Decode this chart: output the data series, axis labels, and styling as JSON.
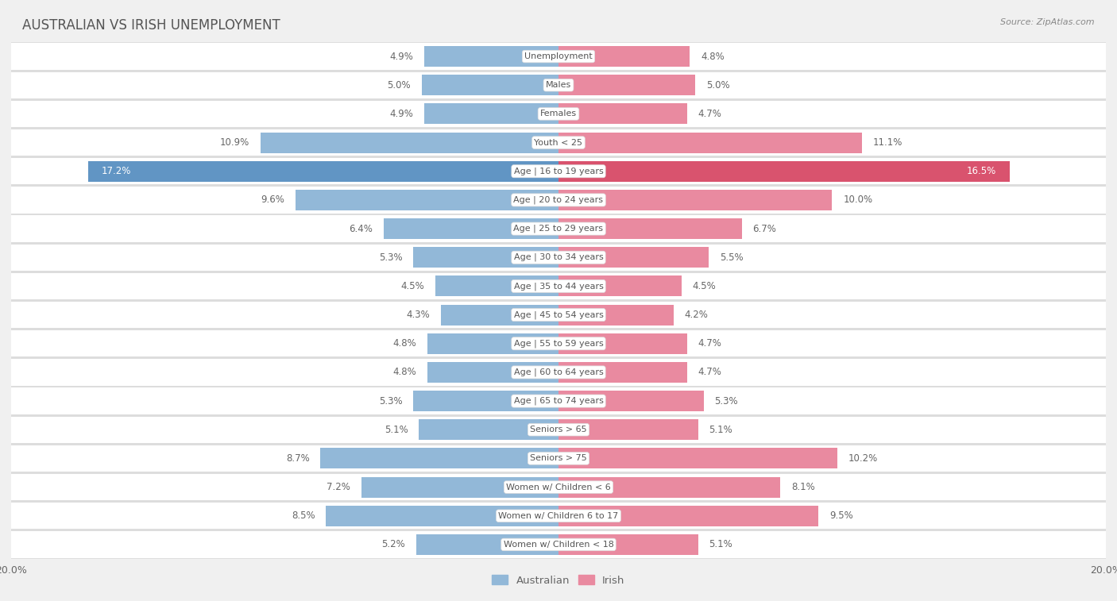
{
  "title": "AUSTRALIAN VS IRISH UNEMPLOYMENT",
  "source": "Source: ZipAtlas.com",
  "categories": [
    "Unemployment",
    "Males",
    "Females",
    "Youth < 25",
    "Age | 16 to 19 years",
    "Age | 20 to 24 years",
    "Age | 25 to 29 years",
    "Age | 30 to 34 years",
    "Age | 35 to 44 years",
    "Age | 45 to 54 years",
    "Age | 55 to 59 years",
    "Age | 60 to 64 years",
    "Age | 65 to 74 years",
    "Seniors > 65",
    "Seniors > 75",
    "Women w/ Children < 6",
    "Women w/ Children 6 to 17",
    "Women w/ Children < 18"
  ],
  "australian": [
    4.9,
    5.0,
    4.9,
    10.9,
    17.2,
    9.6,
    6.4,
    5.3,
    4.5,
    4.3,
    4.8,
    4.8,
    5.3,
    5.1,
    8.7,
    7.2,
    8.5,
    5.2
  ],
  "irish": [
    4.8,
    5.0,
    4.7,
    11.1,
    16.5,
    10.0,
    6.7,
    5.5,
    4.5,
    4.2,
    4.7,
    4.7,
    5.3,
    5.1,
    10.2,
    8.1,
    9.5,
    5.1
  ],
  "australian_color": "#92b8d8",
  "irish_color": "#e98aa0",
  "australian_highlight": "#6195c4",
  "irish_highlight": "#d9536e",
  "label_bg": "#ffffff",
  "label_text": "#555555",
  "value_text": "#666666",
  "title_color": "#555555",
  "background_color": "#f0f0f0",
  "row_bg": "#ffffff",
  "row_border": "#dddddd",
  "axis_limit": 20.0,
  "legend_australian": "Australian",
  "legend_irish": "Irish",
  "bar_height": 0.72
}
